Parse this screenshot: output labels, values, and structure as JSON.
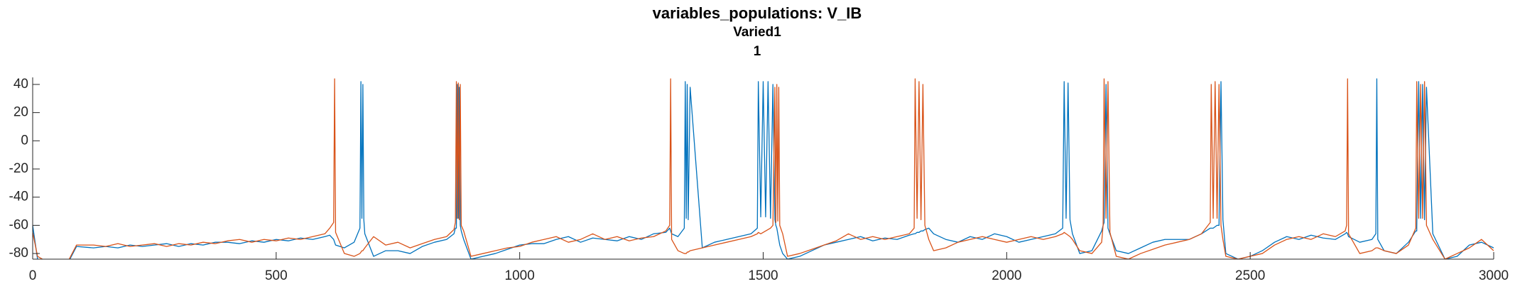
{
  "chart_data": {
    "type": "line",
    "title": "variables_populations: V_IB",
    "subtitle": [
      "Varied1",
      "1"
    ],
    "xlim": [
      0,
      3000
    ],
    "xticks": [
      0,
      500,
      1000,
      1500,
      2000,
      2500,
      3000
    ],
    "ylim": [
      -84,
      45
    ],
    "yticks": [
      -80,
      -60,
      -40,
      -20,
      0,
      20,
      40
    ],
    "x": [
      0,
      10,
      25,
      50,
      75,
      90,
      125,
      150,
      175,
      200,
      225,
      250,
      275,
      300,
      325,
      350,
      375,
      400,
      425,
      450,
      475,
      500,
      525,
      550,
      575,
      600,
      610,
      618,
      620,
      622,
      640,
      660,
      672,
      674,
      676,
      678,
      680,
      682,
      700,
      725,
      750,
      775,
      800,
      825,
      850,
      865,
      868,
      870,
      872,
      874,
      876,
      878,
      880,
      885,
      900,
      925,
      950,
      975,
      1000,
      1025,
      1050,
      1075,
      1100,
      1125,
      1150,
      1175,
      1200,
      1225,
      1250,
      1275,
      1300,
      1308,
      1310,
      1312,
      1325,
      1338,
      1340,
      1342,
      1344,
      1346,
      1350,
      1375,
      1400,
      1425,
      1450,
      1475,
      1488,
      1490,
      1495,
      1500,
      1505,
      1510,
      1515,
      1520,
      1524,
      1526,
      1528,
      1530,
      1532,
      1534,
      1540,
      1550,
      1575,
      1600,
      1625,
      1650,
      1675,
      1700,
      1725,
      1750,
      1775,
      1800,
      1810,
      1812,
      1816,
      1820,
      1824,
      1828,
      1832,
      1840,
      1850,
      1875,
      1900,
      1925,
      1950,
      1975,
      2000,
      2025,
      2050,
      2075,
      2100,
      2115,
      2118,
      2122,
      2126,
      2130,
      2135,
      2150,
      2175,
      2195,
      2198,
      2200,
      2204,
      2208,
      2212,
      2225,
      2250,
      2275,
      2300,
      2325,
      2350,
      2375,
      2400,
      2418,
      2420,
      2424,
      2428,
      2432,
      2436,
      2440,
      2444,
      2450,
      2475,
      2500,
      2525,
      2550,
      2575,
      2600,
      2625,
      2650,
      2675,
      2695,
      2698,
      2700,
      2702,
      2725,
      2750,
      2758,
      2760,
      2762,
      2775,
      2800,
      2825,
      2840,
      2842,
      2846,
      2850,
      2854,
      2858,
      2862,
      2875,
      2900,
      2925,
      2950,
      2975,
      3000
    ],
    "series": [
      {
        "color": "#0072BD",
        "values": [
          -60,
          -84,
          -86,
          -85,
          -85,
          -75,
          -76,
          -75,
          -76,
          -74,
          -75,
          -74,
          -73,
          -75,
          -73,
          -74,
          -72,
          -72,
          -73,
          -71,
          -72,
          -70,
          -71,
          -69,
          -70,
          -68,
          -67,
          -70,
          -72,
          -74,
          -76,
          -72,
          -62,
          42,
          -55,
          40,
          -56,
          -66,
          -82,
          -78,
          -78,
          -80,
          -75,
          -72,
          -70,
          -66,
          -62,
          -62,
          40,
          -55,
          38,
          -60,
          -64,
          -70,
          -84,
          -82,
          -80,
          -77,
          -74,
          -73,
          -73,
          -70,
          -68,
          -72,
          -69,
          -70,
          -71,
          -68,
          -70,
          -66,
          -65,
          -62,
          -64,
          -66,
          -68,
          -62,
          42,
          -55,
          40,
          -56,
          38,
          -76,
          -72,
          -70,
          -68,
          -66,
          -62,
          42,
          -54,
          42,
          -54,
          42,
          -55,
          40,
          -56,
          -60,
          -62,
          -66,
          -70,
          -74,
          -80,
          -84,
          -82,
          -78,
          -74,
          -72,
          -70,
          -68,
          -71,
          -69,
          -70,
          -67,
          -66,
          -66,
          -65,
          -65,
          -64,
          -64,
          -63,
          -62,
          -66,
          -70,
          -72,
          -68,
          -70,
          -66,
          -68,
          -72,
          -70,
          -68,
          -66,
          -62,
          42,
          -55,
          41,
          -56,
          -66,
          -80,
          -78,
          -64,
          -60,
          -58,
          40,
          -62,
          -66,
          -78,
          -80,
          -76,
          -72,
          -70,
          -70,
          -70,
          -66,
          -62,
          -62,
          -62,
          -61,
          -60,
          -60,
          42,
          -56,
          -80,
          -84,
          -82,
          -78,
          -72,
          -68,
          -70,
          -67,
          -69,
          -70,
          -66,
          -65,
          -66,
          -68,
          -72,
          -70,
          -66,
          44,
          -70,
          -78,
          -80,
          -72,
          -64,
          -64,
          42,
          -55,
          40,
          -56,
          38,
          -66,
          -84,
          -82,
          -74,
          -72,
          -76
        ]
      },
      {
        "color": "#D95319",
        "values": [
          -65,
          -82,
          -85,
          -85,
          -84,
          -74,
          -74,
          -75,
          -73,
          -75,
          -74,
          -73,
          -75,
          -73,
          -74,
          -72,
          -73,
          -71,
          -70,
          -72,
          -70,
          -71,
          -69,
          -70,
          -68,
          -66,
          -62,
          -58,
          44,
          -65,
          -80,
          -82,
          -80,
          -79,
          -78,
          -78,
          -77,
          -76,
          -68,
          -74,
          -72,
          -76,
          -73,
          -70,
          -68,
          -63,
          -58,
          42,
          -55,
          41,
          -56,
          40,
          -60,
          -64,
          -82,
          -80,
          -78,
          -76,
          -75,
          -72,
          -70,
          -68,
          -72,
          -70,
          -66,
          -70,
          -68,
          -71,
          -69,
          -68,
          -64,
          -60,
          44,
          -70,
          -78,
          -80,
          -80,
          -80,
          -79,
          -79,
          -78,
          -76,
          -74,
          -72,
          -70,
          -68,
          -66,
          -65,
          -66,
          -65,
          -64,
          -63,
          -62,
          -60,
          38,
          -58,
          40,
          -57,
          38,
          -60,
          -66,
          -82,
          -80,
          -77,
          -74,
          -71,
          -66,
          -70,
          -68,
          -70,
          -68,
          -66,
          -62,
          44,
          -55,
          42,
          -56,
          40,
          -60,
          -70,
          -78,
          -76,
          -72,
          -70,
          -68,
          -70,
          -72,
          -70,
          -68,
          -70,
          -68,
          -66,
          -65,
          -66,
          -67,
          -68,
          -70,
          -78,
          -80,
          -72,
          -60,
          44,
          -55,
          42,
          -65,
          -82,
          -84,
          -80,
          -77,
          -74,
          -72,
          -70,
          -66,
          -58,
          40,
          -55,
          42,
          -55,
          40,
          -60,
          -70,
          -82,
          -84,
          -82,
          -80,
          -74,
          -70,
          -68,
          -70,
          -66,
          -68,
          -64,
          -60,
          44,
          -66,
          -80,
          -78,
          -76,
          -76,
          -76,
          -78,
          -80,
          -74,
          -62,
          42,
          -55,
          40,
          -55,
          42,
          -60,
          -70,
          -84,
          -80,
          -76,
          -70,
          -78
        ]
      }
    ]
  }
}
